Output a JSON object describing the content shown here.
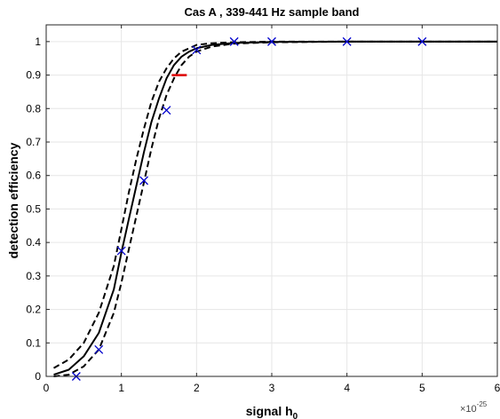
{
  "chart_data": {
    "type": "line",
    "title": "Cas A , 339-441 Hz sample band",
    "xlabel": "signal h",
    "xlabel_subscript": "0",
    "ylabel": "detection efficiency",
    "x_exponent_label": "×10",
    "x_exponent_power": "-25",
    "xlim": [
      0,
      6
    ],
    "ylim": [
      0,
      1.05
    ],
    "grid": true,
    "x_ticks": [
      "0",
      "1",
      "2",
      "3",
      "4",
      "5",
      "6"
    ],
    "y_ticks": [
      "0",
      "0.1",
      "0.2",
      "0.3",
      "0.4",
      "0.5",
      "0.6",
      "0.7",
      "0.8",
      "0.9",
      "1"
    ],
    "series": [
      {
        "kind": "line",
        "style": "solid",
        "color": "#000000",
        "x": [
          0.1,
          0.3,
          0.5,
          0.7,
          0.9,
          1.0,
          1.1,
          1.2,
          1.3,
          1.4,
          1.5,
          1.6,
          1.7,
          1.8,
          1.9,
          2.0,
          2.2,
          2.5,
          3.0,
          4.0,
          5.0,
          6.0
        ],
        "y": [
          0.005,
          0.02,
          0.06,
          0.13,
          0.26,
          0.37,
          0.47,
          0.57,
          0.67,
          0.76,
          0.83,
          0.89,
          0.93,
          0.955,
          0.97,
          0.98,
          0.99,
          0.996,
          0.999,
          1.0,
          1.0,
          1.0
        ]
      },
      {
        "kind": "line",
        "style": "dashed",
        "color": "#000000",
        "x": [
          0.1,
          0.3,
          0.5,
          0.7,
          0.9,
          1.0,
          1.1,
          1.2,
          1.3,
          1.4,
          1.5,
          1.6,
          1.7,
          1.8,
          1.9,
          2.0,
          2.2,
          2.5,
          3.0,
          4.0,
          5.0,
          6.0
        ],
        "y": [
          0.025,
          0.05,
          0.1,
          0.19,
          0.33,
          0.44,
          0.55,
          0.65,
          0.74,
          0.82,
          0.88,
          0.92,
          0.95,
          0.97,
          0.98,
          0.99,
          0.995,
          0.998,
          1.0,
          1.0,
          1.0,
          1.0
        ]
      },
      {
        "kind": "line",
        "style": "dashed",
        "color": "#000000",
        "x": [
          0.1,
          0.3,
          0.5,
          0.7,
          0.9,
          1.0,
          1.1,
          1.2,
          1.3,
          1.4,
          1.5,
          1.6,
          1.7,
          1.8,
          1.9,
          2.0,
          2.2,
          2.5,
          3.0,
          4.0,
          5.0,
          6.0
        ],
        "y": [
          0.0,
          0.005,
          0.03,
          0.08,
          0.19,
          0.28,
          0.38,
          0.48,
          0.58,
          0.68,
          0.77,
          0.84,
          0.89,
          0.93,
          0.955,
          0.97,
          0.985,
          0.994,
          0.998,
          1.0,
          1.0,
          1.0
        ]
      },
      {
        "kind": "markers",
        "marker": "x",
        "color": "#0000cc",
        "x": [
          0.4,
          0.7,
          1.0,
          1.3,
          1.6,
          2.0,
          2.5,
          3.0,
          4.0,
          5.0
        ],
        "y": [
          0.0,
          0.08,
          0.375,
          0.585,
          0.795,
          0.975,
          1.0,
          1.0,
          1.0,
          1.0
        ]
      },
      {
        "kind": "segment",
        "color": "#dd0000",
        "x": [
          1.67,
          1.87
        ],
        "y": [
          0.9,
          0.9
        ]
      }
    ]
  }
}
